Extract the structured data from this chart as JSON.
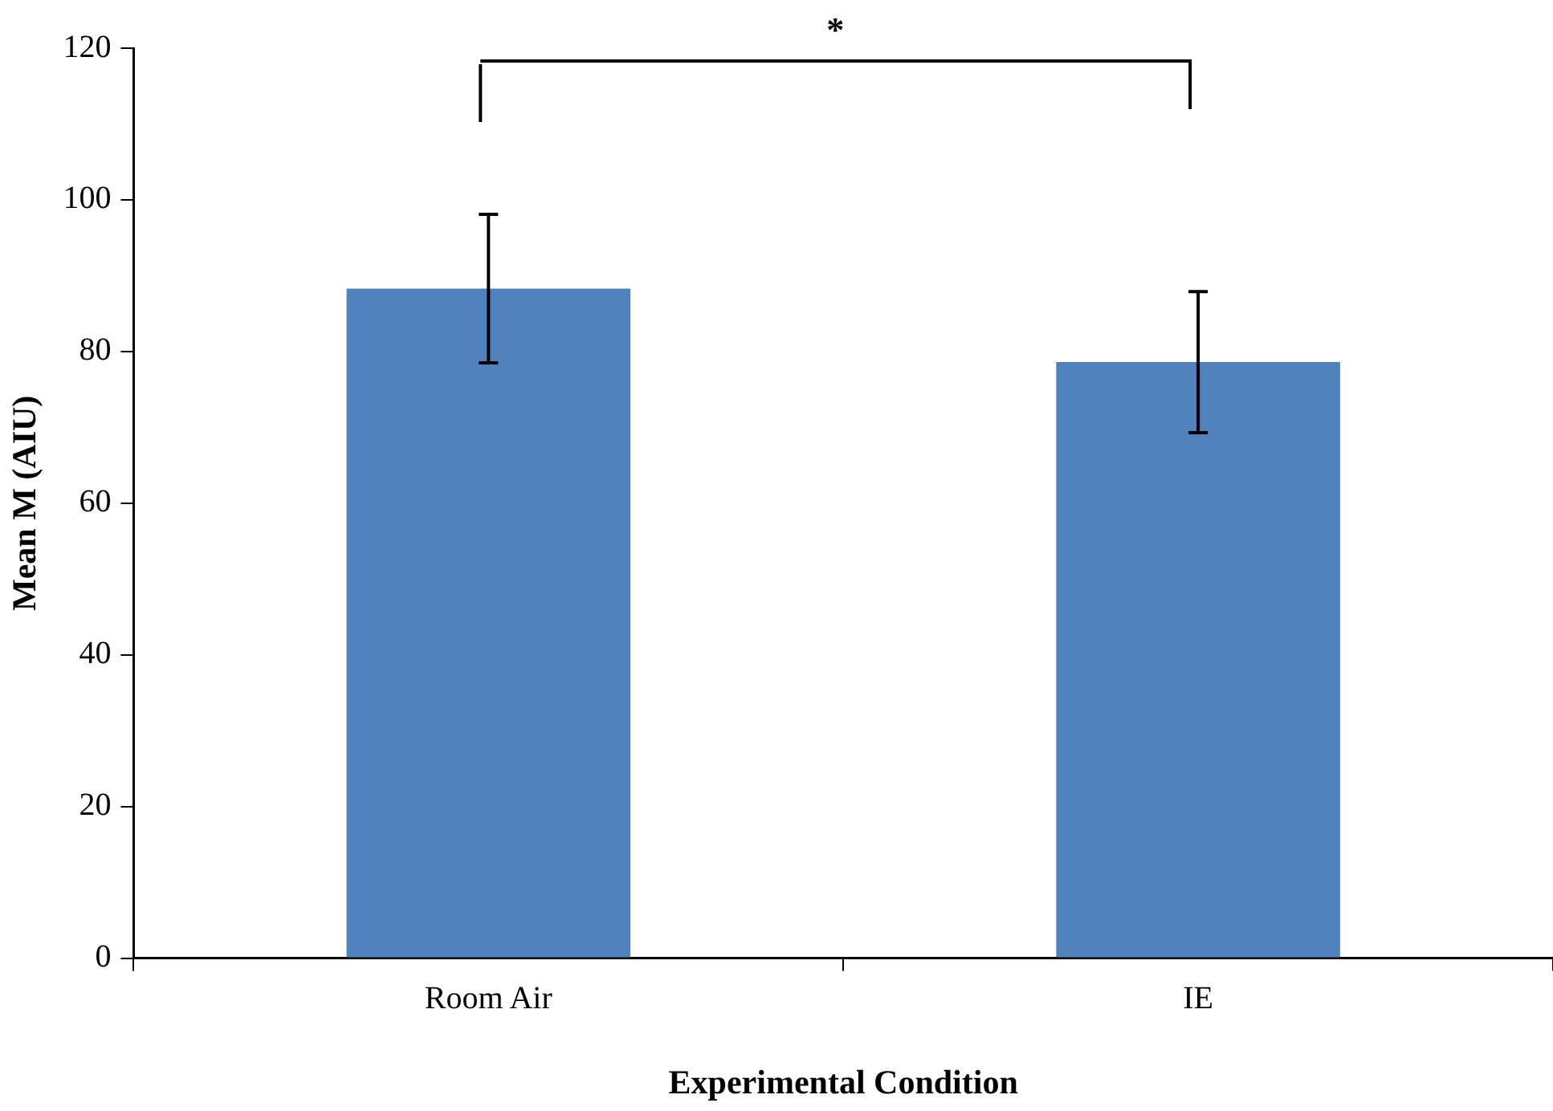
{
  "chart_data": {
    "type": "bar",
    "xlabel": "Experimental Condition",
    "ylabel": "Mean M (AIU)",
    "categories": [
      "Room Air",
      "IE"
    ],
    "values": [
      88.3,
      78.6
    ],
    "errors": [
      9.8,
      9.3
    ],
    "color": "#4f81bd",
    "ylim": [
      0,
      120
    ],
    "yticks": [
      0,
      20,
      40,
      60,
      80,
      100,
      120
    ],
    "grid": false,
    "legend": false,
    "annotations": [
      "*"
    ]
  }
}
